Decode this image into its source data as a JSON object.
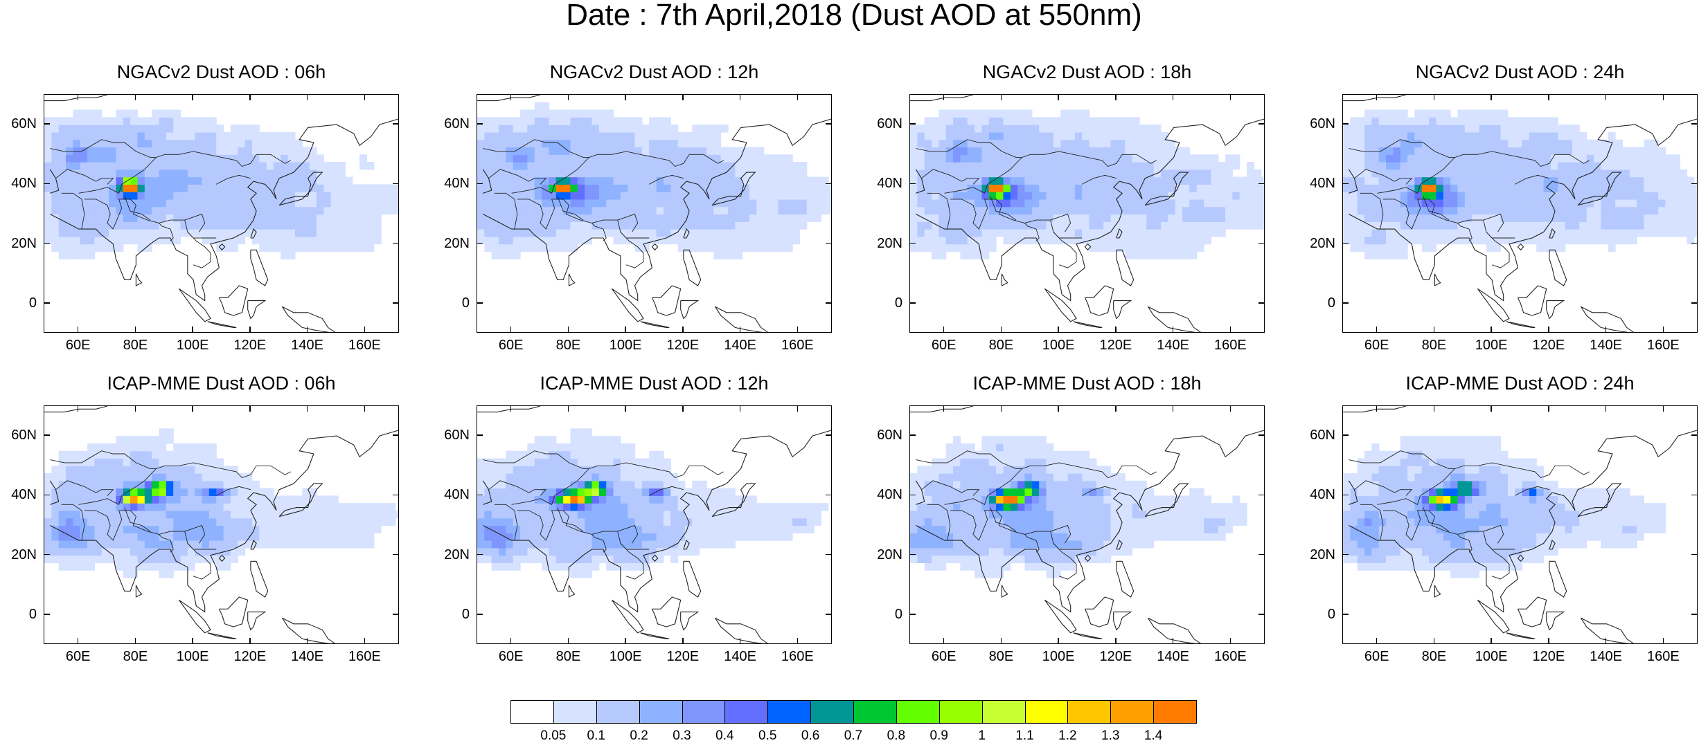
{
  "title": "Date : 7th April,2018 (Dust AOD at 550nm)",
  "panels": [
    {
      "title": "NGACv2 Dust AOD : 06h",
      "model": "ngac",
      "shift": 0
    },
    {
      "title": "NGACv2 Dust AOD : 12h",
      "model": "ngac",
      "shift": 1
    },
    {
      "title": "NGACv2 Dust AOD : 18h",
      "model": "ngac",
      "shift": 2
    },
    {
      "title": "NGACv2 Dust AOD : 24h",
      "model": "ngac",
      "shift": 3
    },
    {
      "title": "ICAP-MME Dust AOD : 06h",
      "model": "icap",
      "shift": 0
    },
    {
      "title": "ICAP-MME Dust AOD : 12h",
      "model": "icap",
      "shift": 1
    },
    {
      "title": "ICAP-MME Dust AOD : 18h",
      "model": "icap",
      "shift": 2
    },
    {
      "title": "ICAP-MME Dust AOD : 24h",
      "model": "icap",
      "shift": 3
    }
  ],
  "map": {
    "lon_range": [
      48,
      172
    ],
    "lat_range": [
      -10,
      70
    ],
    "lon_ticks": [
      60,
      80,
      100,
      120,
      140,
      160
    ],
    "lon_tick_labels": [
      "60E",
      "80E",
      "100E",
      "120E",
      "140E",
      "160E"
    ],
    "lat_ticks": [
      60,
      40,
      20,
      0
    ],
    "lat_tick_labels": [
      "60N",
      "40N",
      "20N",
      "0"
    ]
  },
  "colorbar": {
    "labels": [
      "0.05",
      "0.1",
      "0.2",
      "0.3",
      "0.4",
      "0.5",
      "0.6",
      "0.7",
      "0.8",
      "0.9",
      "1",
      "1.1",
      "1.2",
      "1.3",
      "1.4"
    ],
    "colors": [
      "#ffffff",
      "#d6e2ff",
      "#b5c9ff",
      "#8eb2ff",
      "#7f96ff",
      "#6370ff",
      "#0063ff",
      "#009696",
      "#00c633",
      "#63ff00",
      "#96ff00",
      "#c6ff33",
      "#ffff00",
      "#ffc600",
      "#ffa000",
      "#ff7c00",
      "#ff1900"
    ]
  }
}
